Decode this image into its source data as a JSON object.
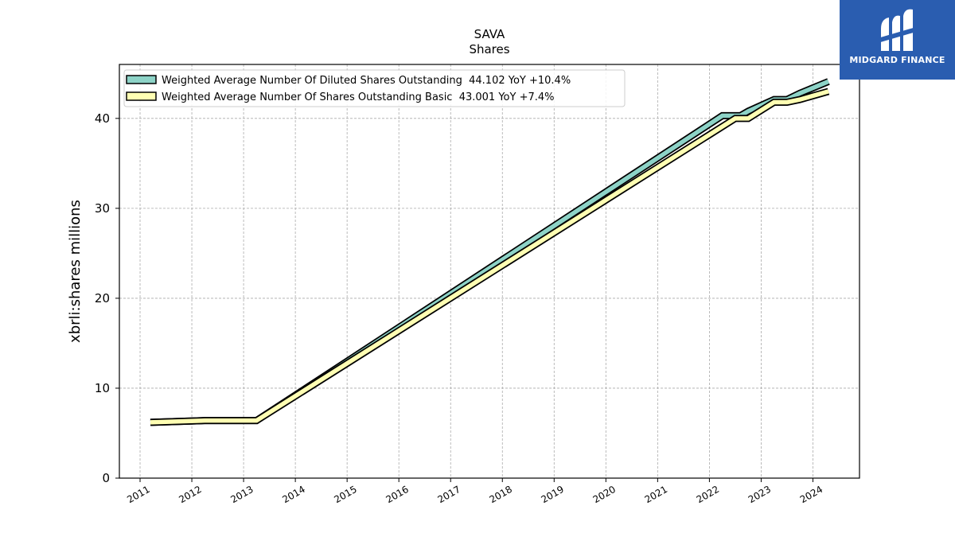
{
  "chart_data": {
    "type": "line",
    "title": "SAVA",
    "subtitle": "Shares",
    "xlabel": "",
    "ylabel": "xbrli:shares millions",
    "xlim": [
      2010.6,
      2024.9
    ],
    "ylim": [
      0,
      46
    ],
    "x_ticks": [
      "2011",
      "2012",
      "2013",
      "2014",
      "2015",
      "2016",
      "2017",
      "2018",
      "2019",
      "2020",
      "2021",
      "2022",
      "2023",
      "2024"
    ],
    "y_ticks": [
      "0",
      "10",
      "20",
      "30",
      "40"
    ],
    "grid": true,
    "legend_position": "top-left",
    "series": [
      {
        "name": "Weighted Average Number Of Diluted Shares Outstanding  44.102 YoY +10.4%",
        "color": "#8dd3c7",
        "x": [
          2011.2,
          2012.25,
          2013.25,
          2022.25,
          2022.6,
          2022.75,
          2023.25,
          2023.5,
          2023.75,
          2024.3
        ],
        "y": [
          6.2,
          6.4,
          6.4,
          40.3,
          40.3,
          40.8,
          42.1,
          42.1,
          42.8,
          44.1
        ]
      },
      {
        "name": "Weighted Average Number Of Shares Outstanding Basic  43.001 YoY +7.4%",
        "color": "#ffffb3",
        "x": [
          2011.2,
          2012.25,
          2013.25,
          2022.5,
          2022.75,
          2023.25,
          2023.5,
          2023.75,
          2024.3
        ],
        "y": [
          6.2,
          6.4,
          6.4,
          40.0,
          40.0,
          41.8,
          41.8,
          42.1,
          43.0
        ]
      }
    ]
  },
  "logo": {
    "text": "MIDGARD FINANCE"
  }
}
